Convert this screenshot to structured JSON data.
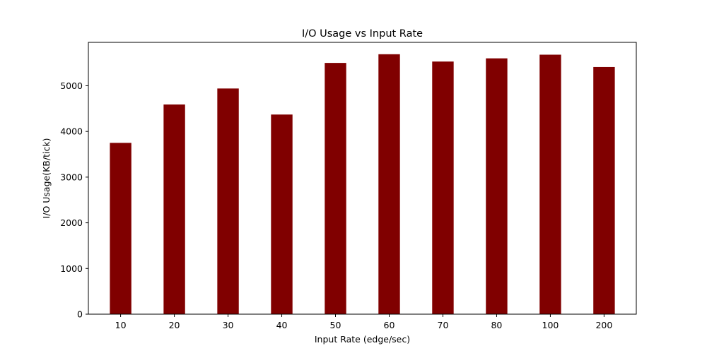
{
  "chart_data": {
    "type": "bar",
    "title": "I/O Usage vs Input Rate",
    "xlabel": "Input Rate (edge/sec)",
    "ylabel": "I/O Usage(KB/tick)",
    "categories": [
      "10",
      "20",
      "30",
      "40",
      "50",
      "60",
      "70",
      "80",
      "100",
      "200"
    ],
    "values": [
      3750,
      4590,
      4940,
      4370,
      5500,
      5690,
      5530,
      5600,
      5680,
      5410
    ],
    "ylim": [
      0,
      5950
    ],
    "yticks": [
      0,
      1000,
      2000,
      3000,
      4000,
      5000
    ],
    "bar_color": "#800000",
    "grid": false,
    "legend": "none"
  }
}
